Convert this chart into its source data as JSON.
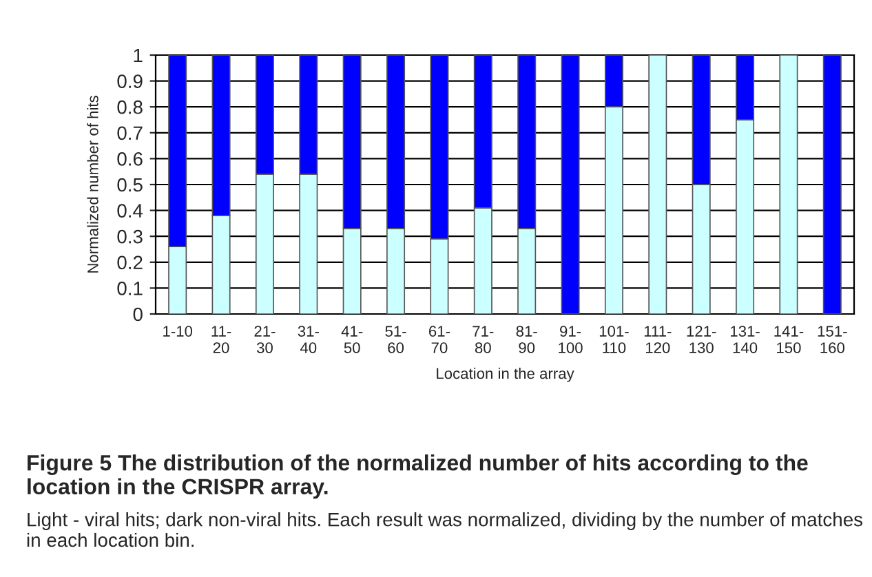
{
  "chart_data": {
    "type": "bar",
    "stacked": true,
    "title": "Figure 5 The distribution of the normalized number of hits according to the location in the CRISPR array.",
    "annotations": [
      "Light - viral hits; dark non-viral hits. Each result was normalized, dividing by the number of matches in each location bin."
    ],
    "xlabel": "Location in the array",
    "ylabel": "Normalized number of hits",
    "categories": [
      "1-10",
      "11-\n20",
      "21-\n30",
      "31-\n40",
      "41-\n50",
      "51-\n60",
      "61-\n70",
      "71-\n80",
      "81-\n90",
      "91-\n100",
      "101-\n110",
      "111-\n120",
      "121-\n130",
      "131-\n140",
      "141-\n150",
      "151-\n160"
    ],
    "series": [
      {
        "color": "#ccffff",
        "values": [
          0.26,
          0.38,
          0.54,
          0.54,
          0.33,
          0.33,
          0.29,
          0.41,
          0.33,
          0,
          0.8,
          1,
          0.5,
          0.75,
          1,
          0
        ]
      },
      {
        "color": "#0000ff",
        "values": [
          0.74,
          0.62,
          0.46,
          0.46,
          0.67,
          0.67,
          0.71,
          0.59,
          0.67,
          1,
          0.2,
          0,
          0.5,
          0.25,
          0,
          1
        ]
      }
    ],
    "ylim": [
      0,
      1
    ],
    "yticks": [
      0,
      0.1,
      0.2,
      0.3,
      0.4,
      0.5,
      0.6,
      0.7,
      0.8,
      0.9,
      1
    ],
    "grid": "y",
    "legend": false
  }
}
